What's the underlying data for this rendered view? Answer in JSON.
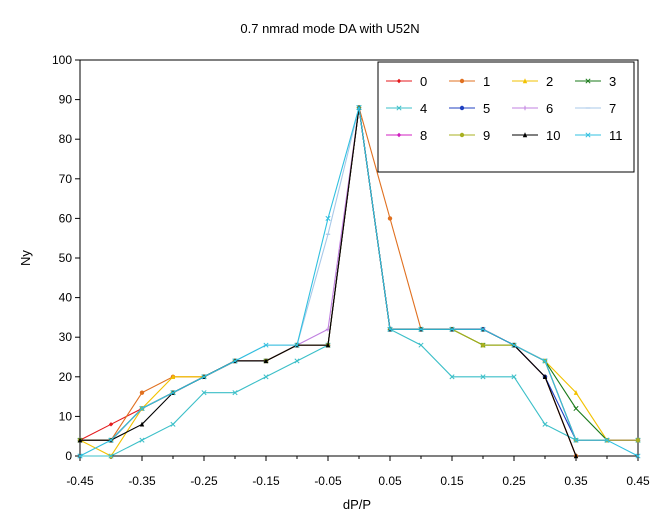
{
  "chart_data": {
    "type": "line",
    "title": "0.7 nmrad mode DA with U52N",
    "xlabel": "dP/P",
    "ylabel": "Ny",
    "xlim": [
      -0.45,
      0.45
    ],
    "ylim": [
      0,
      100
    ],
    "x_ticks": [
      "-0.45",
      "-0.35",
      "-0.25",
      "-0.15",
      "-0.05",
      "0.05",
      "0.15",
      "0.25",
      "0.35",
      "0.45"
    ],
    "y_ticks": [
      "0",
      "10",
      "20",
      "30",
      "40",
      "50",
      "60",
      "70",
      "80",
      "90",
      "100"
    ],
    "grid": false,
    "legend_position": "top-right",
    "x": [
      -0.45,
      -0.4,
      -0.35,
      -0.3,
      -0.25,
      -0.2,
      -0.15,
      -0.1,
      -0.05,
      0.0,
      0.05,
      0.1,
      0.15,
      0.2,
      0.25,
      0.3,
      0.35,
      0.4,
      0.45
    ],
    "series": [
      {
        "name": "0",
        "color": "#e41a1c",
        "marker": "diamond",
        "values": [
          4,
          8,
          12,
          16,
          20,
          24,
          24,
          28,
          28,
          88,
          32,
          32,
          32,
          32,
          28,
          20,
          0,
          null,
          null
        ]
      },
      {
        "name": "1",
        "color": "#e07020",
        "marker": "circle",
        "values": [
          4,
          4,
          16,
          20,
          20,
          24,
          24,
          28,
          28,
          88,
          60,
          32,
          32,
          32,
          28,
          20,
          0,
          null,
          null
        ]
      },
      {
        "name": "2",
        "color": "#f2c200",
        "marker": "triangle",
        "values": [
          4,
          0,
          12,
          20,
          20,
          24,
          24,
          28,
          28,
          88,
          32,
          32,
          32,
          28,
          28,
          24,
          16,
          4,
          4
        ]
      },
      {
        "name": "3",
        "color": "#1a7a1a",
        "marker": "x",
        "values": [
          4,
          4,
          12,
          16,
          20,
          24,
          24,
          28,
          28,
          88,
          32,
          32,
          32,
          28,
          28,
          24,
          12,
          4,
          4
        ]
      },
      {
        "name": "4",
        "color": "#3bbfc8",
        "marker": "star",
        "values": [
          0,
          0,
          4,
          8,
          16,
          16,
          20,
          24,
          28,
          88,
          32,
          28,
          20,
          20,
          20,
          8,
          4,
          4,
          4
        ]
      },
      {
        "name": "5",
        "color": "#2040c0",
        "marker": "circle",
        "values": [
          4,
          4,
          12,
          16,
          20,
          24,
          24,
          28,
          28,
          88,
          32,
          32,
          32,
          32,
          28,
          20,
          4,
          4,
          4
        ]
      },
      {
        "name": "6",
        "color": "#c080e0",
        "marker": "plus",
        "values": [
          4,
          4,
          12,
          16,
          20,
          24,
          24,
          28,
          32,
          88,
          32,
          32,
          32,
          32,
          28,
          24,
          4,
          4,
          4
        ]
      },
      {
        "name": "7",
        "color": "#a8c8e8",
        "marker": "dash",
        "values": [
          4,
          4,
          12,
          16,
          20,
          24,
          28,
          28,
          56,
          88,
          32,
          32,
          32,
          32,
          28,
          24,
          4,
          4,
          4
        ]
      },
      {
        "name": "8",
        "color": "#d020c0",
        "marker": "diamond",
        "values": [
          4,
          4,
          12,
          16,
          20,
          24,
          24,
          28,
          28,
          88,
          32,
          32,
          32,
          32,
          28,
          24,
          4,
          4,
          4
        ]
      },
      {
        "name": "9",
        "color": "#a8b020",
        "marker": "circle",
        "values": [
          4,
          4,
          12,
          16,
          20,
          24,
          24,
          28,
          28,
          88,
          32,
          32,
          32,
          28,
          28,
          24,
          4,
          4,
          4
        ]
      },
      {
        "name": "10",
        "color": "#000000",
        "marker": "triangle",
        "values": [
          4,
          4,
          8,
          16,
          20,
          24,
          24,
          28,
          28,
          88,
          32,
          32,
          32,
          32,
          28,
          20,
          0,
          null,
          null
        ]
      },
      {
        "name": "11",
        "color": "#30c0e0",
        "marker": "x",
        "values": [
          0,
          4,
          12,
          16,
          20,
          24,
          28,
          28,
          60,
          88,
          32,
          32,
          32,
          32,
          28,
          24,
          4,
          4,
          0
        ]
      }
    ]
  }
}
